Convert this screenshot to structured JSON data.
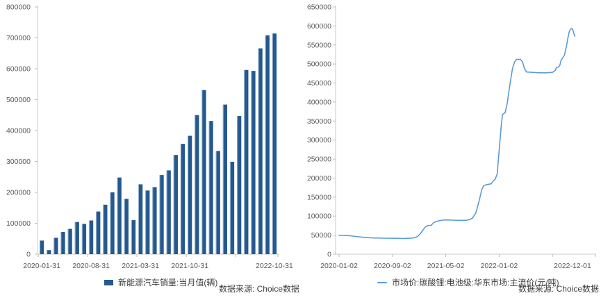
{
  "source_note": "数据来源: Choice数据",
  "colors": {
    "bar_fill": "#24598F",
    "bar_highlight": "#AFC4DC",
    "line": "#5B9BD5",
    "axis_line": "#C9C9C9",
    "tick_mark": "#BBBBBB",
    "tick_label": "#595959",
    "legend_text": "#404040",
    "source_text": "#404040",
    "background": "#FFFFFF"
  },
  "chart_data": [
    {
      "type": "bar",
      "title": "",
      "legend": "新能源汽车销量:当月值(辆)",
      "source": "数据来源: Choice数据",
      "xlabel": "",
      "ylabel": "",
      "ylim": [
        0,
        800000
      ],
      "ytick_step": 100000,
      "yticks": [
        0,
        100000,
        200000,
        300000,
        400000,
        500000,
        600000,
        700000,
        800000
      ],
      "grid": false,
      "legend_position": "bottom",
      "categories": [
        "2020-01-31",
        "2020-02-29",
        "2020-03-31",
        "2020-04-30",
        "2020-05-31",
        "2020-06-30",
        "2020-07-31",
        "2020-08-31",
        "2020-09-30",
        "2020-10-31",
        "2020-11-30",
        "2020-12-31",
        "2021-01-31",
        "2021-02-28",
        "2021-03-31",
        "2021-04-30",
        "2021-05-31",
        "2021-06-30",
        "2021-07-31",
        "2021-08-31",
        "2021-09-30",
        "2021-10-31",
        "2021-11-30",
        "2021-12-31",
        "2022-01-31",
        "2022-02-28",
        "2022-03-31",
        "2022-04-30",
        "2022-05-31",
        "2022-06-30",
        "2022-07-31",
        "2022-08-31",
        "2022-09-30",
        "2022-10-31"
      ],
      "values": [
        44000,
        13000,
        53000,
        72000,
        82000,
        104000,
        98000,
        109000,
        138000,
        160000,
        200000,
        248000,
        179000,
        110000,
        226000,
        206000,
        217000,
        256000,
        271000,
        321000,
        357000,
        383000,
        450000,
        531000,
        431000,
        334000,
        484000,
        299000,
        447000,
        596000,
        593000,
        666000,
        708000,
        714000
      ],
      "xticks": [
        {
          "category_index": 0,
          "label": "2020-01-31"
        },
        {
          "category_index": 7,
          "label": "2020-08-31"
        },
        {
          "category_index": 14,
          "label": "2021-03-31"
        },
        {
          "category_index": 21,
          "label": "2021-10-31"
        },
        {
          "category_index": 33,
          "label": "2022-10-31"
        }
      ],
      "xtick_interval_categories": 7
    },
    {
      "type": "line",
      "title": "",
      "legend": "市场价:碳酸锂:电池级:华东市场:主流价(元/吨)",
      "source": "数据来源: Choice数据",
      "xlabel": "",
      "ylabel": "",
      "ylim": [
        0,
        650000
      ],
      "ytick_step": 50000,
      "yticks": [
        0,
        50000,
        100000,
        150000,
        200000,
        250000,
        300000,
        350000,
        400000,
        450000,
        500000,
        550000,
        600000,
        650000
      ],
      "grid": false,
      "legend_position": "bottom",
      "x_start_date": "2020-01-02",
      "x_months": [
        0,
        0.5,
        1,
        1.5,
        2,
        2.5,
        3,
        3.5,
        4,
        4.5,
        5,
        6,
        7,
        8,
        9,
        9.7,
        10.5,
        11,
        11.4,
        11.8,
        12.2,
        12.6,
        13,
        13.3,
        13.8,
        14.2,
        14.6,
        15,
        15.5,
        16,
        17,
        18,
        19,
        19.6,
        20,
        20.5,
        21,
        21.4,
        21.7,
        22,
        22.5,
        22.8,
        23.1,
        23.4,
        23.7,
        24,
        24.3,
        24.5,
        24.9,
        25.2,
        25.6,
        26,
        26.3,
        26.6,
        27.2,
        27.5,
        27.8,
        28.1,
        29,
        30,
        31,
        32,
        32.4,
        32.6,
        32.9,
        33.1,
        33.3,
        33.5,
        33.8,
        34.1,
        34.3,
        34.5,
        34.7,
        34.9,
        35.05,
        35.2,
        35.35
      ],
      "values": [
        49500,
        49300,
        49000,
        48800,
        47500,
        46500,
        45500,
        44800,
        44000,
        43300,
        42800,
        42300,
        42000,
        41800,
        41500,
        41300,
        41800,
        42300,
        43500,
        47000,
        54000,
        64000,
        72500,
        75000,
        76000,
        83000,
        86000,
        88000,
        89500,
        90000,
        89500,
        89000,
        89000,
        91000,
        95000,
        108000,
        140000,
        170000,
        180000,
        182000,
        184000,
        185000,
        192000,
        197000,
        210000,
        272000,
        335000,
        367000,
        372000,
        395000,
        445000,
        488000,
        505000,
        512000,
        512000,
        506000,
        488000,
        479000,
        478000,
        477000,
        477000,
        478000,
        483000,
        491000,
        492000,
        497000,
        511000,
        515000,
        524000,
        548000,
        568000,
        584000,
        592000,
        593000,
        590000,
        580000,
        573000
      ],
      "xticks": [
        {
          "month": 0,
          "label": "2020-01-02"
        },
        {
          "month": 8,
          "label": "2020-09-02"
        },
        {
          "month": 16,
          "label": "2021-05-02"
        },
        {
          "month": 24,
          "label": "2022-01-02"
        },
        {
          "month": 35,
          "label": "2022-12-01"
        }
      ],
      "xtick_interval_months": 8
    }
  ]
}
